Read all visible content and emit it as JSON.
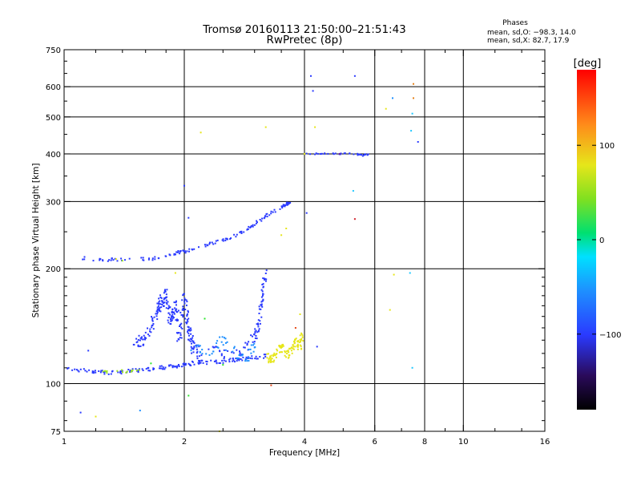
{
  "chart_data": {
    "type": "scatter",
    "title": "Tromsø 20160113 21:50:00–21:51:43",
    "subtitle": "RwPretec (8p)",
    "xlabel": "Frequency [MHz]",
    "ylabel": "Stationary phase Virtual Height [km]",
    "x_scale": "log",
    "y_scale": "log",
    "xlim": [
      1,
      16
    ],
    "ylim": [
      75,
      750
    ],
    "x_ticks": [
      1,
      2,
      4,
      6,
      8,
      10,
      16
    ],
    "x_tick_labels": [
      "1",
      "2",
      "4",
      "6",
      "8",
      "10",
      "16"
    ],
    "x_minor_ticks": [
      1.2,
      1.4,
      1.6,
      1.8,
      2.5,
      3,
      3.5,
      5,
      7,
      9,
      12,
      14
    ],
    "y_ticks": [
      75,
      100,
      200,
      300,
      400,
      500,
      600,
      750
    ],
    "y_tick_labels": [
      "75",
      "100",
      "200",
      "300",
      "400",
      "500",
      "600",
      "750"
    ],
    "y_minor_ticks": [
      80,
      90,
      110,
      120,
      130,
      140,
      150,
      160,
      170,
      180,
      190,
      250,
      350,
      450,
      550,
      650,
      700
    ],
    "grid_x": [
      2,
      4,
      6,
      8,
      10
    ],
    "grid_y": [
      100,
      200,
      300,
      400,
      500,
      600
    ],
    "legend": {
      "title": "Phases",
      "lines": [
        "mean, sd,O: −98.3, 14.0",
        "mean, sd,X:  82.7, 17.9"
      ]
    },
    "colorbar": {
      "label": "[deg]",
      "range": [
        -180,
        180
      ],
      "ticks": [
        -100,
        0,
        100
      ],
      "tick_labels": [
        "−100",
        "0",
        "100"
      ]
    },
    "traces": [
      {
        "name": "O-mode low layer",
        "color": "#2a3aff",
        "spread": 0.012,
        "points": [
          [
            1.0,
            109
          ],
          [
            1.1,
            108.5
          ],
          [
            1.2,
            107.5
          ],
          [
            1.3,
            107
          ],
          [
            1.4,
            107.5
          ],
          [
            1.5,
            108
          ],
          [
            1.6,
            108.5
          ],
          [
            1.7,
            109.5
          ],
          [
            1.8,
            110.5
          ],
          [
            1.9,
            111
          ],
          [
            2.0,
            112
          ],
          [
            2.1,
            113
          ],
          [
            2.2,
            113.5
          ],
          [
            2.4,
            114
          ],
          [
            2.6,
            115
          ],
          [
            2.8,
            116
          ],
          [
            3.0,
            117
          ],
          [
            3.2,
            118
          ]
        ],
        "density": 9
      },
      {
        "name": "O-mode cusp sheet",
        "color": "#2a3aff",
        "spread": 0.04,
        "points": [
          [
            1.5,
            128
          ],
          [
            1.6,
            132
          ],
          [
            1.7,
            150
          ],
          [
            1.75,
            162
          ],
          [
            1.8,
            172
          ],
          [
            1.85,
            145
          ],
          [
            1.9,
            160
          ],
          [
            1.95,
            130
          ],
          [
            2.0,
            170
          ],
          [
            2.05,
            140
          ],
          [
            2.1,
            125
          ],
          [
            2.2,
            118
          ]
        ],
        "density": 22
      },
      {
        "name": "O-mode E-F cusp",
        "color": "#2a3aff",
        "spread": 0.03,
        "points": [
          [
            2.3,
            125
          ],
          [
            2.5,
            120
          ],
          [
            2.7,
            118
          ],
          [
            2.85,
            125
          ],
          [
            3.0,
            132
          ],
          [
            3.05,
            140
          ],
          [
            3.1,
            150
          ],
          [
            3.12,
            165
          ],
          [
            3.15,
            180
          ],
          [
            3.2,
            195
          ]
        ],
        "density": 10
      },
      {
        "name": "O-mode spread cyan",
        "color": "#1e90ff",
        "spread": 0.035,
        "points": [
          [
            2.1,
            125
          ],
          [
            2.3,
            120
          ],
          [
            2.5,
            130
          ],
          [
            2.7,
            120
          ],
          [
            2.9,
            118
          ],
          [
            3.0,
            125
          ]
        ],
        "density": 10
      },
      {
        "name": "O-mode F trace",
        "color": "#2a3aff",
        "spread": 0.01,
        "points": [
          [
            1.1,
            213
          ],
          [
            1.3,
            211
          ],
          [
            1.5,
            212
          ],
          [
            1.7,
            213
          ],
          [
            1.9,
            220
          ],
          [
            2.0,
            222
          ],
          [
            2.2,
            228
          ],
          [
            2.4,
            235
          ],
          [
            2.6,
            240
          ],
          [
            2.8,
            250
          ],
          [
            3.0,
            262
          ],
          [
            3.2,
            275
          ],
          [
            3.4,
            285
          ],
          [
            3.6,
            295
          ],
          [
            3.7,
            300
          ]
        ],
        "density": 10
      },
      {
        "name": "X-mode yellow",
        "color": "#e6e61a",
        "spread": 0.025,
        "points": [
          [
            3.2,
            118
          ],
          [
            3.3,
            115
          ],
          [
            3.4,
            120
          ],
          [
            3.5,
            125
          ],
          [
            3.6,
            118
          ],
          [
            3.7,
            122
          ],
          [
            3.8,
            130
          ],
          [
            3.9,
            125
          ],
          [
            3.95,
            135
          ]
        ],
        "density": 13
      },
      {
        "name": "X-mode low green",
        "color": "#9fe81f",
        "spread": 0.008,
        "points": [
          [
            1.25,
            107
          ],
          [
            1.35,
            108
          ],
          [
            1.45,
            107.5
          ],
          [
            1.55,
            108
          ]
        ],
        "density": 5
      },
      {
        "name": "F2 echo 400 km",
        "color": "#2a3aff",
        "spread": 0.004,
        "points": [
          [
            4.0,
            401
          ],
          [
            4.4,
            400
          ],
          [
            4.8,
            400
          ],
          [
            5.2,
            400
          ],
          [
            5.6,
            398
          ],
          [
            5.8,
            399
          ]
        ],
        "density": 7
      }
    ],
    "scatter_points": [
      [
        1.1,
        84,
        "#2a3aff"
      ],
      [
        1.2,
        82,
        "#e6e61a"
      ],
      [
        1.55,
        85,
        "#1e90ff"
      ],
      [
        2.05,
        93,
        "#2ee62e"
      ],
      [
        2.45,
        75,
        "#e6e61a"
      ],
      [
        3.3,
        99,
        "#e64a1a"
      ],
      [
        1.35,
        212,
        "#e6e61a"
      ],
      [
        1.4,
        210,
        "#9fe81f"
      ],
      [
        1.9,
        195,
        "#e6e61a"
      ],
      [
        2.0,
        330,
        "#2a3aff"
      ],
      [
        2.05,
        272,
        "#2a3aff"
      ],
      [
        2.2,
        455,
        "#e6e61a"
      ],
      [
        3.2,
        470,
        "#e6e61a"
      ],
      [
        3.5,
        245,
        "#e6e61a"
      ],
      [
        3.6,
        255,
        "#e6e61a"
      ],
      [
        3.9,
        152,
        "#e6e61a"
      ],
      [
        3.8,
        140,
        "#e64a1a"
      ],
      [
        4.05,
        280,
        "#2a3aff"
      ],
      [
        4.15,
        640,
        "#2a3aff"
      ],
      [
        4.2,
        585,
        "#2a3aff"
      ],
      [
        4.25,
        470,
        "#e6e61a"
      ],
      [
        4.3,
        125,
        "#2a3aff"
      ],
      [
        5.35,
        640,
        "#2a3aff"
      ],
      [
        5.3,
        320,
        "#1ec8ff"
      ],
      [
        5.35,
        270,
        "#d0202a"
      ],
      [
        6.4,
        525,
        "#e6e61a"
      ],
      [
        6.65,
        560,
        "#1e90ff"
      ],
      [
        6.7,
        193,
        "#e6e61a"
      ],
      [
        6.55,
        156,
        "#e6e61a"
      ],
      [
        7.35,
        195,
        "#1ec8ff"
      ],
      [
        7.4,
        460,
        "#1ec8ff"
      ],
      [
        7.5,
        560,
        "#e6821a"
      ],
      [
        7.45,
        510,
        "#1ec8ff"
      ],
      [
        7.5,
        610,
        "#e6821a"
      ],
      [
        7.7,
        430,
        "#2a3aff"
      ],
      [
        7.45,
        110,
        "#1ec8ff"
      ],
      [
        1.15,
        122,
        "#2a3aff"
      ],
      [
        1.65,
        113,
        "#2ee62e"
      ],
      [
        2.25,
        148,
        "#2ee62e"
      ],
      [
        1.25,
        210,
        "#2a3aff"
      ],
      [
        2.5,
        112,
        "#2ee62e"
      ],
      [
        4.0,
        400,
        "#e6e61a"
      ],
      [
        4.9,
        400,
        "#6a1a9a"
      ],
      [
        5.6,
        395,
        "#2a3aff"
      ]
    ]
  }
}
